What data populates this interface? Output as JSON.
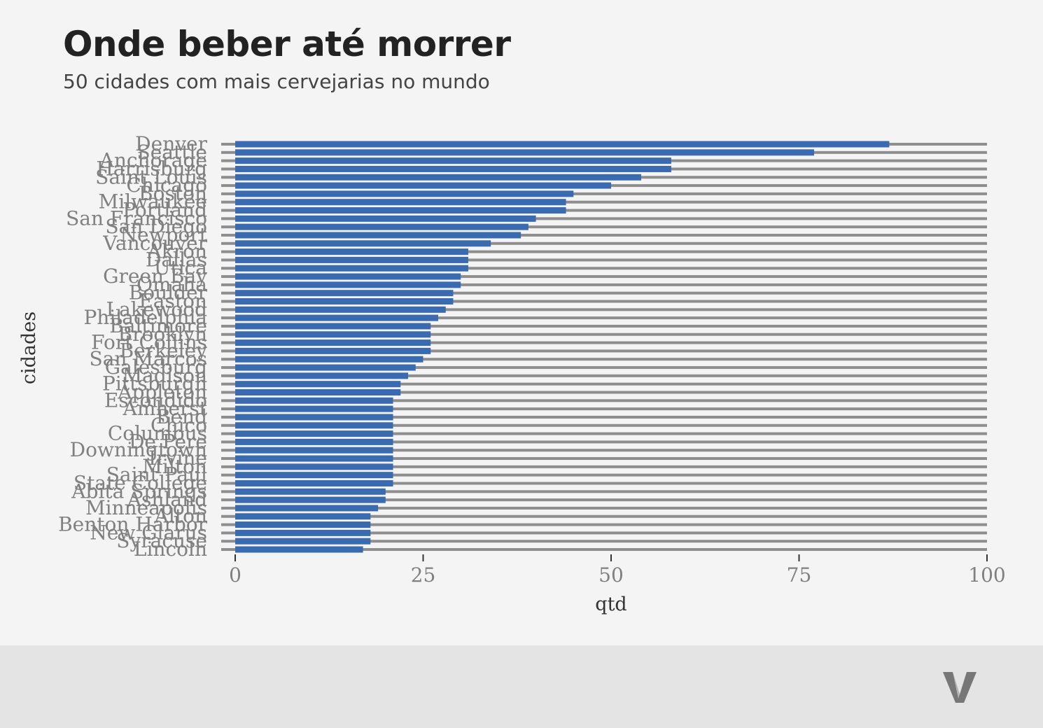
{
  "header": {
    "title": "Onde beber até morrer",
    "subtitle": "50 cidades com mais cervejarias no mundo"
  },
  "colors": {
    "bar": "#3a6aaf",
    "track": "#8e8e8e",
    "background": "#f4f4f4",
    "footer": "#e4e4e4",
    "logo": "#777777"
  },
  "chart_data": {
    "type": "bar",
    "orientation": "horizontal",
    "xlabel": "qtd",
    "ylabel": "cidades",
    "xlim": [
      0,
      100
    ],
    "xticks": [
      0,
      25,
      50,
      75,
      100
    ],
    "grid": false,
    "categories": [
      "Denver",
      "Seattle",
      "Anchorage",
      "Harrisburg",
      "Saint Louis",
      "Chicago",
      "Boston",
      "Milwaukee",
      "Portland",
      "San Francisco",
      "San Diego",
      "Newport",
      "Vancouver",
      "Akron",
      "Dallas",
      "Utica",
      "Green Bay",
      "Omaha",
      "Boulder",
      "Easton",
      "Lakewood",
      "Philadelphia",
      "Baltimore",
      "Brooklyn",
      "Fort Collins",
      "Berkeley",
      "San Marcos",
      "Galesburg",
      "Madison",
      "Pittsburgh",
      "Appleton",
      "Escondido",
      "Amherst",
      "Bend",
      "Chico",
      "Columbus",
      "De Pere",
      "Downingtown",
      "Irvine",
      "Milton",
      "Saint Paul",
      "State College",
      "Abita Springs",
      "Ashland",
      "Minneapolis",
      "Alton",
      "Benton Harbor",
      "New Glarus",
      "Syracuse",
      "Lincoln"
    ],
    "values": [
      87,
      77,
      58,
      58,
      54,
      50,
      45,
      44,
      44,
      40,
      39,
      38,
      34,
      31,
      31,
      31,
      30,
      30,
      29,
      29,
      28,
      27,
      26,
      26,
      26,
      26,
      25,
      24,
      23,
      22,
      22,
      21,
      21,
      21,
      21,
      21,
      21,
      21,
      21,
      21,
      21,
      21,
      20,
      20,
      19,
      18,
      18,
      18,
      18,
      17
    ]
  }
}
